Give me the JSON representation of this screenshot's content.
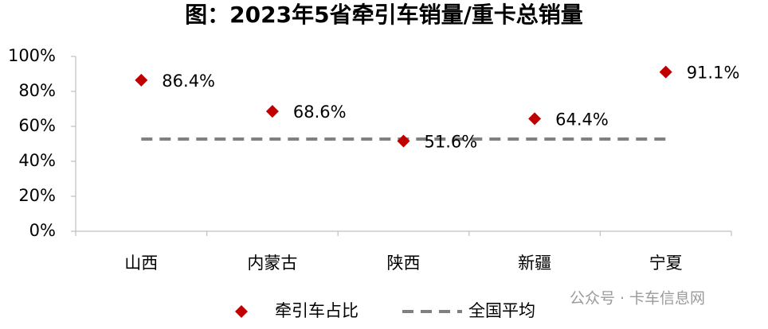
{
  "chart_data": {
    "type": "scatter_line",
    "title": "图：2023年5省牵引车销量/重卡总销量",
    "categories": [
      "山西",
      "内蒙古",
      "陕西",
      "新疆",
      "宁夏"
    ],
    "series": [
      {
        "name": "牵引车占比",
        "color": "#c00000",
        "marker": "diamond",
        "values": [
          86.4,
          68.6,
          51.6,
          64.4,
          91.1
        ],
        "value_labels": [
          "86.4%",
          "68.6%",
          "51.6%",
          "64.4%",
          "91.1%"
        ]
      },
      {
        "name": "全国平均",
        "color": "#808080",
        "marker": "dashed-line",
        "values": [
          52.7,
          52.7,
          52.7,
          52.7,
          52.7
        ]
      }
    ],
    "ylim": [
      0,
      100
    ],
    "yticks": [
      {
        "value": 0,
        "label": "0%"
      },
      {
        "value": 20,
        "label": "20%"
      },
      {
        "value": 40,
        "label": "40%"
      },
      {
        "value": 60,
        "label": "60%"
      },
      {
        "value": 80,
        "label": "80%"
      },
      {
        "value": 100,
        "label": "100%"
      }
    ],
    "grid": false,
    "legend": "bottom",
    "watermark": "公众号 · 卡车信息网"
  }
}
